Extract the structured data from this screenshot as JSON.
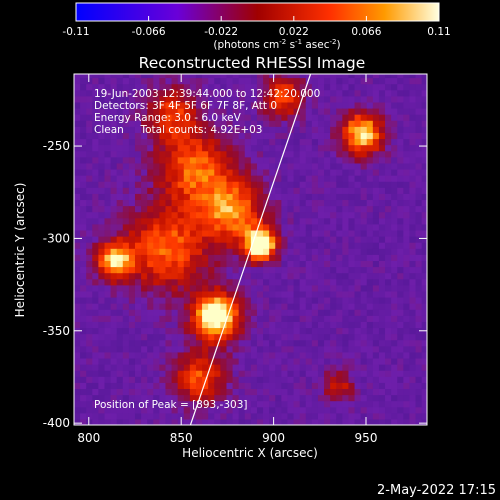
{
  "chart_data": {
    "type": "heatmap",
    "title": "Reconstructed RHESSI Image",
    "xlabel": "Heliocentric X (arcsec)",
    "ylabel": "Heliocentric Y (arcsec)",
    "xlim": [
      792,
      983
    ],
    "ylim": [
      -401,
      -211
    ],
    "xticks": [
      800,
      850,
      900,
      950
    ],
    "yticks": [
      -250,
      -300,
      -350,
      -400
    ],
    "colorbar": {
      "range": [
        -0.11,
        0.11
      ],
      "ticks": [
        "-0.11",
        "-0.066",
        "-0.022",
        "0.022",
        "0.066",
        "0.11"
      ],
      "unit_label": "(photons cm",
      "unit_sup1": "-2",
      "unit_mid": " s",
      "unit_sup2": "-1",
      "unit_mid2": " asec",
      "unit_sup3": "-2",
      "unit_end": ")"
    },
    "annotations": [
      "19-Jun-2003 12:39:44.000 to 12:42:20.000",
      "Detectors: 3F 4F 5F 6F 7F 8F, Att 0",
      "Energy Range: 3.0 - 6.0 keV",
      "Clean     Total counts: 4.92E+03"
    ],
    "peak_label": "Position of Peak = [893,-303]",
    "peak": [
      893,
      -303
    ],
    "limb_line": [
      [
        855,
        -401
      ],
      [
        920,
        -211
      ]
    ],
    "sources": [
      {
        "x": 893,
        "y": -303,
        "sigma": 6,
        "amp": 1.0
      },
      {
        "x": 869,
        "y": -342,
        "sigma": 9,
        "amp": 0.95
      },
      {
        "x": 814,
        "y": -312,
        "sigma": 7,
        "amp": 0.72
      },
      {
        "x": 948,
        "y": -243,
        "sigma": 8,
        "amp": 0.78
      },
      {
        "x": 858,
        "y": -262,
        "sigma": 14,
        "amp": 0.55
      },
      {
        "x": 842,
        "y": -305,
        "sigma": 16,
        "amp": 0.55
      },
      {
        "x": 878,
        "y": -285,
        "sigma": 12,
        "amp": 0.6
      },
      {
        "x": 860,
        "y": -375,
        "sigma": 10,
        "amp": 0.5
      },
      {
        "x": 845,
        "y": -232,
        "sigma": 10,
        "amp": 0.45
      },
      {
        "x": 905,
        "y": -223,
        "sigma": 8,
        "amp": 0.5
      },
      {
        "x": 935,
        "y": -380,
        "sigma": 6,
        "amp": 0.35
      }
    ],
    "footer_date": "2-May-2022 17:15"
  }
}
